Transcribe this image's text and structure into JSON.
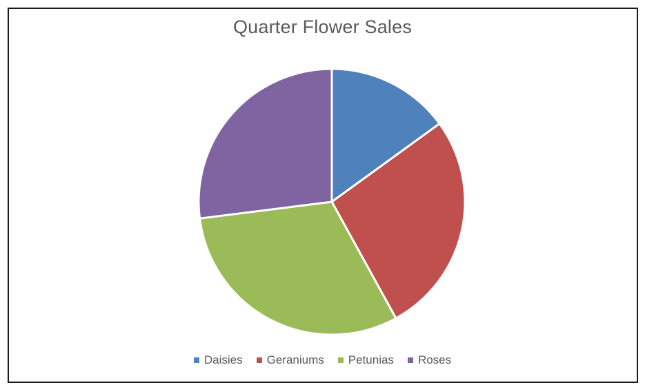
{
  "chart_data": {
    "type": "pie",
    "title": "Quarter Flower Sales",
    "categories": [
      "Daisies",
      "Geraniums",
      "Petunias",
      "Roses"
    ],
    "values": [
      15,
      27,
      31,
      27
    ],
    "colors": [
      "#4f81bd",
      "#c0504d",
      "#9bbb59",
      "#8064a2"
    ],
    "legend_position": "bottom"
  }
}
